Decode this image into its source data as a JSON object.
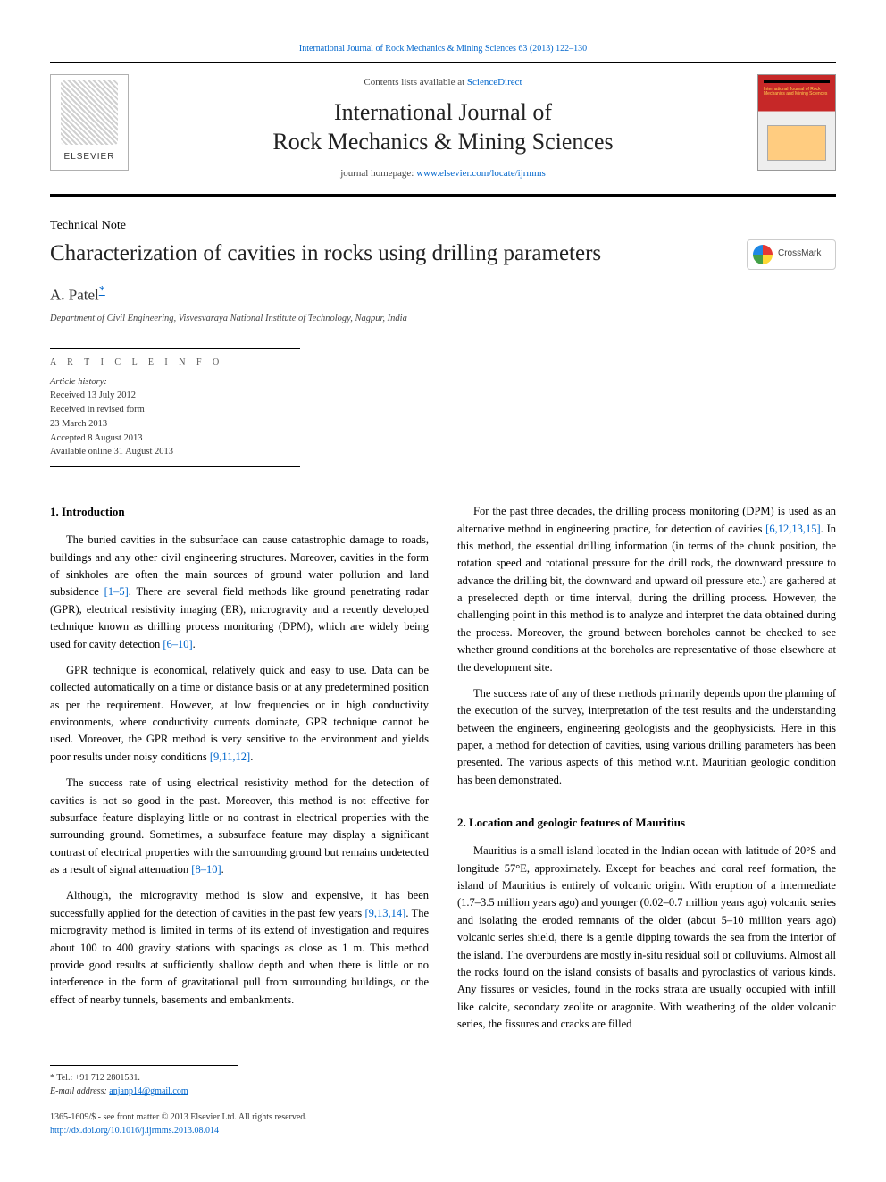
{
  "top_link": "International Journal of Rock Mechanics & Mining Sciences 63 (2013) 122–130",
  "header": {
    "contents_pre": "Contents lists available at ",
    "contents_link": "ScienceDirect",
    "journal_line1": "International Journal of",
    "journal_line2": "Rock Mechanics & Mining Sciences",
    "homepage_pre": "journal homepage: ",
    "homepage_link": "www.elsevier.com/locate/ijrmms",
    "elsevier": "ELSEVIER",
    "cover_text": "International Journal of\nRock Mechanics\nand\nMining Sciences"
  },
  "article": {
    "type": "Technical Note",
    "title": "Characterization of cavities in rocks using drilling parameters",
    "crossmark": "CrossMark",
    "authors": "A. Patel",
    "corr_marker": "*",
    "affiliation": "Department of Civil Engineering, Visvesvaraya National Institute of Technology, Nagpur, India"
  },
  "article_info": {
    "heading": "A R T I C L E   I N F O",
    "history_label": "Article history:",
    "received": "Received 13 July 2012",
    "revised": "Received in revised form",
    "revised_date": "23 March 2013",
    "accepted": "Accepted 8 August 2013",
    "online": "Available online 31 August 2013"
  },
  "sections": {
    "s1_title": "1.  Introduction",
    "s1_p1a": "The buried cavities in the subsurface can cause catastrophic damage to roads, buildings and any other civil engineering structures. Moreover, cavities in the form of sinkholes are often the main sources of ground water pollution and land subsidence ",
    "s1_p1_ref1": "[1–5]",
    "s1_p1b": ". There are several field methods like ground penetrating radar (GPR), electrical resistivity imaging (ER), microgravity and a recently developed technique known as drilling process monitoring (DPM), which are widely being used for cavity detection ",
    "s1_p1_ref2": "[6–10]",
    "s1_p1c": ".",
    "s1_p2a": "GPR technique is economical, relatively quick and easy to use. Data can be collected automatically on a time or distance basis or at any predetermined position as per the requirement. However, at low frequencies or in high conductivity environments, where conductivity currents dominate, GPR technique cannot be used. Moreover, the GPR method is very sensitive to the environment and yields poor results under noisy conditions ",
    "s1_p2_ref": "[9,11,12]",
    "s1_p2b": ".",
    "s1_p3a": "The success rate of using electrical resistivity method for the detection of cavities is not so good in the past. Moreover, this method is not effective for subsurface feature displaying little or no contrast in electrical properties with the surrounding ground. Sometimes, a subsurface feature may display a significant contrast of electrical properties with the surrounding ground but remains undetected as a result of signal attenuation ",
    "s1_p3_ref": "[8–10]",
    "s1_p3b": ".",
    "s1_p4a": "Although, the microgravity method is slow and expensive, it has been successfully applied for the detection of cavities in the past few years ",
    "s1_p4_ref": "[9,13,14]",
    "s1_p4b": ". The microgravity method is limited in terms of its extend of investigation and requires about 100 to 400 gravity stations with spacings as close as 1 m. This method provide good results at sufficiently shallow depth and when there is little or no interference in the form of gravitational pull from surrounding buildings, or the effect of nearby tunnels, basements and embankments.",
    "s1_p5a": "For the past three decades, the drilling process monitoring (DPM) is used as an alternative method in engineering practice, for detection of cavities ",
    "s1_p5_ref": "[6,12,13,15]",
    "s1_p5b": ". In this method, the essential drilling information (in terms of the chunk position, the rotation speed and rotational pressure for the drill rods, the downward pressure to advance the drilling bit, the downward and upward oil pressure etc.) are gathered at a preselected depth or time interval, during the drilling process. However, the challenging point in this method is to analyze and interpret the data obtained during the process. Moreover, the ground between boreholes cannot be checked to see whether ground conditions at the boreholes are representative of those elsewhere at the development site.",
    "s1_p6": "The success rate of any of these methods primarily depends upon the planning of the execution of the survey, interpretation of the test results and the understanding between the engineers, engineering geologists and the geophysicists. Here in this paper, a method for detection of cavities, using various drilling parameters has been presented. The various aspects of this method w.r.t. Mauritian geologic condition has been demonstrated.",
    "s2_title": "2.  Location and geologic features of Mauritius",
    "s2_p1": "Mauritius is a small island located in the Indian ocean with latitude of 20°S and longitude 57°E, approximately. Except for beaches and coral reef formation, the island of Mauritius is entirely of volcanic origin. With eruption of a intermediate (1.7–3.5 million years ago) and younger (0.02–0.7 million years ago) volcanic series and isolating the eroded remnants of the older (about 5–10 million years ago) volcanic series shield, there is a gentle dipping towards the sea from the interior of the island. The overburdens are mostly in-situ residual soil or colluviums. Almost all the rocks found on the island consists of basalts and pyroclastics of various kinds. Any fissures or vesicles, found in the rocks strata are usually occupied with infill like calcite, secondary zeolite or aragonite. With weathering of the older volcanic series, the fissures and cracks are filled"
  },
  "footnotes": {
    "tel": "* Tel.: +91 712 2801531.",
    "email_label": "E-mail address: ",
    "email": "anjanp14@gmail.com"
  },
  "footer": {
    "issn_line": "1365-1609/$ - see front matter © 2013 Elsevier Ltd. All rights reserved.",
    "doi": "http://dx.doi.org/10.1016/j.ijrmms.2013.08.014"
  }
}
